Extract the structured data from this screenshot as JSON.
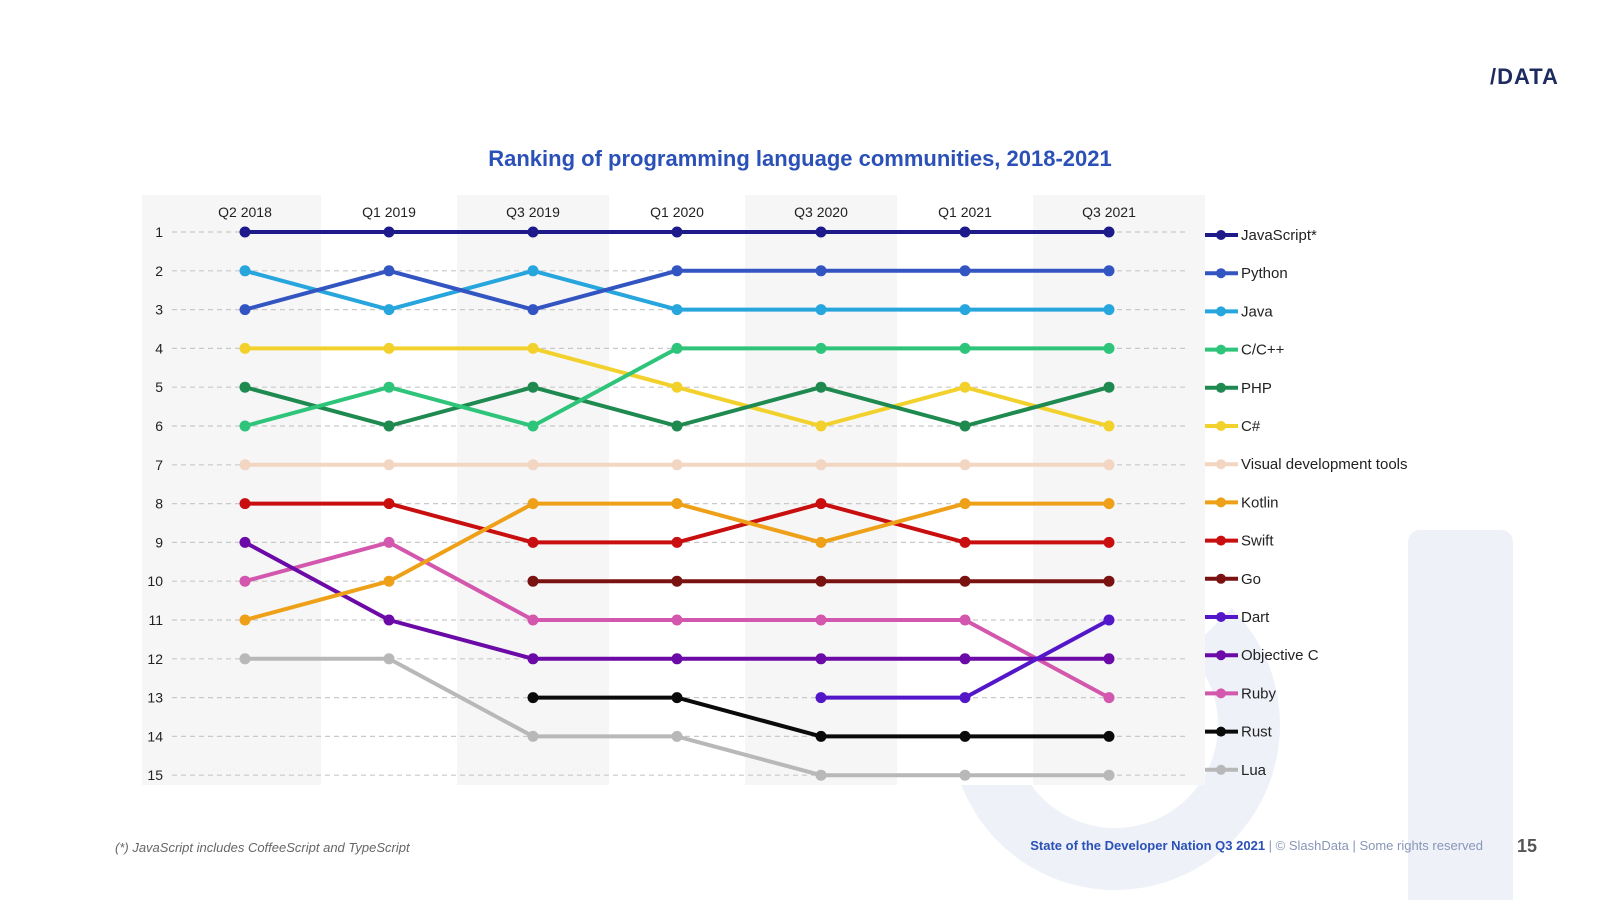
{
  "brand": {
    "logo_text": "/DATA"
  },
  "chart_data": {
    "type": "line",
    "title": "Ranking of programming language communities, 2018-2021",
    "categories": [
      "Q2 2018",
      "Q1 2019",
      "Q3 2019",
      "Q1 2020",
      "Q3 2020",
      "Q1 2021",
      "Q3 2021"
    ],
    "y_ticks": [
      "1",
      "2",
      "3",
      "4",
      "5",
      "6",
      "7",
      "8",
      "9",
      "10",
      "11",
      "12",
      "13",
      "14",
      "15"
    ],
    "ylim": [
      1,
      15
    ],
    "y_inverted": true,
    "grid": true,
    "legend_position": "right",
    "series": [
      {
        "name": "JavaScript*",
        "color": "#1f1a8a",
        "values": [
          1,
          1,
          1,
          1,
          1,
          1,
          1
        ]
      },
      {
        "name": "Python",
        "color": "#3355c2",
        "values": [
          3,
          2,
          3,
          2,
          2,
          2,
          2
        ]
      },
      {
        "name": "Java",
        "color": "#27a5dd",
        "values": [
          2,
          3,
          2,
          3,
          3,
          3,
          3
        ]
      },
      {
        "name": "C/C++",
        "color": "#2ec47a",
        "values": [
          6,
          5,
          6,
          4,
          4,
          4,
          4
        ]
      },
      {
        "name": "PHP",
        "color": "#1f8a50",
        "values": [
          5,
          6,
          5,
          6,
          5,
          6,
          5
        ]
      },
      {
        "name": "C#",
        "color": "#f2d12c",
        "values": [
          4,
          4,
          4,
          5,
          6,
          5,
          6
        ]
      },
      {
        "name": "Visual development tools",
        "color": "#f3d6c2",
        "values": [
          7,
          7,
          7,
          7,
          7,
          7,
          7
        ]
      },
      {
        "name": "Kotlin",
        "color": "#eea018",
        "values": [
          11,
          10,
          8,
          8,
          9,
          8,
          8
        ]
      },
      {
        "name": "Swift",
        "color": "#c80e0e",
        "values": [
          8,
          8,
          9,
          9,
          8,
          9,
          9
        ]
      },
      {
        "name": "Go",
        "color": "#7a1212",
        "values": [
          null,
          null,
          10,
          10,
          10,
          10,
          10
        ]
      },
      {
        "name": "Dart",
        "color": "#5317c9",
        "values": [
          null,
          null,
          null,
          null,
          13,
          13,
          11
        ]
      },
      {
        "name": "Objective C",
        "color": "#6b0aa6",
        "values": [
          9,
          11,
          12,
          12,
          12,
          12,
          12
        ]
      },
      {
        "name": "Ruby",
        "color": "#d257ad",
        "values": [
          10,
          9,
          11,
          11,
          11,
          11,
          13
        ]
      },
      {
        "name": "Rust",
        "color": "#0a0a0a",
        "values": [
          null,
          null,
          13,
          13,
          14,
          14,
          14
        ]
      },
      {
        "name": "Lua",
        "color": "#b8b8b8",
        "values": [
          12,
          12,
          14,
          14,
          15,
          15,
          15
        ]
      }
    ]
  },
  "footnote": "(*) JavaScript includes CoffeeScript and TypeScript",
  "footer": {
    "report": "State of the Developer Nation Q3 2021",
    "separator1": " | ",
    "copyright": "© SlashData",
    "separator2": " | ",
    "rights": "Some rights reserved"
  },
  "page_number": "15"
}
